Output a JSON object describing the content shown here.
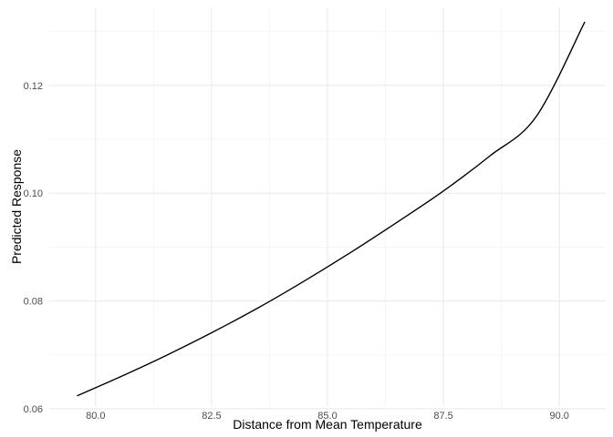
{
  "chart_data": {
    "type": "line",
    "title": "",
    "xlabel": "Distance from Mean Temperature",
    "ylabel": "Predicted Response",
    "xlim": [
      79.0,
      91.0
    ],
    "ylim": [
      0.0605,
      0.1345
    ],
    "x_ticks": [
      80.0,
      82.5,
      85.0,
      87.5,
      90.0
    ],
    "x_tick_labels": [
      "80.0",
      "82.5",
      "85.0",
      "87.5",
      "90.0"
    ],
    "y_ticks": [
      0.06,
      0.08,
      0.1,
      0.12
    ],
    "y_tick_labels": [
      "0.06",
      "0.08",
      "0.10",
      "0.12"
    ],
    "grid": true,
    "legend": "none",
    "series": [
      {
        "color": "#000000",
        "x": [
          79.6,
          80.5,
          81.5,
          82.5,
          83.5,
          84.5,
          85.5,
          86.5,
          87.5,
          88.5,
          89.5,
          90.55
        ],
        "y": [
          0.0624,
          0.0658,
          0.0698,
          0.0741,
          0.0787,
          0.0837,
          0.089,
          0.0946,
          0.1004,
          0.1069,
          0.1142,
          0.1318
        ]
      }
    ]
  }
}
